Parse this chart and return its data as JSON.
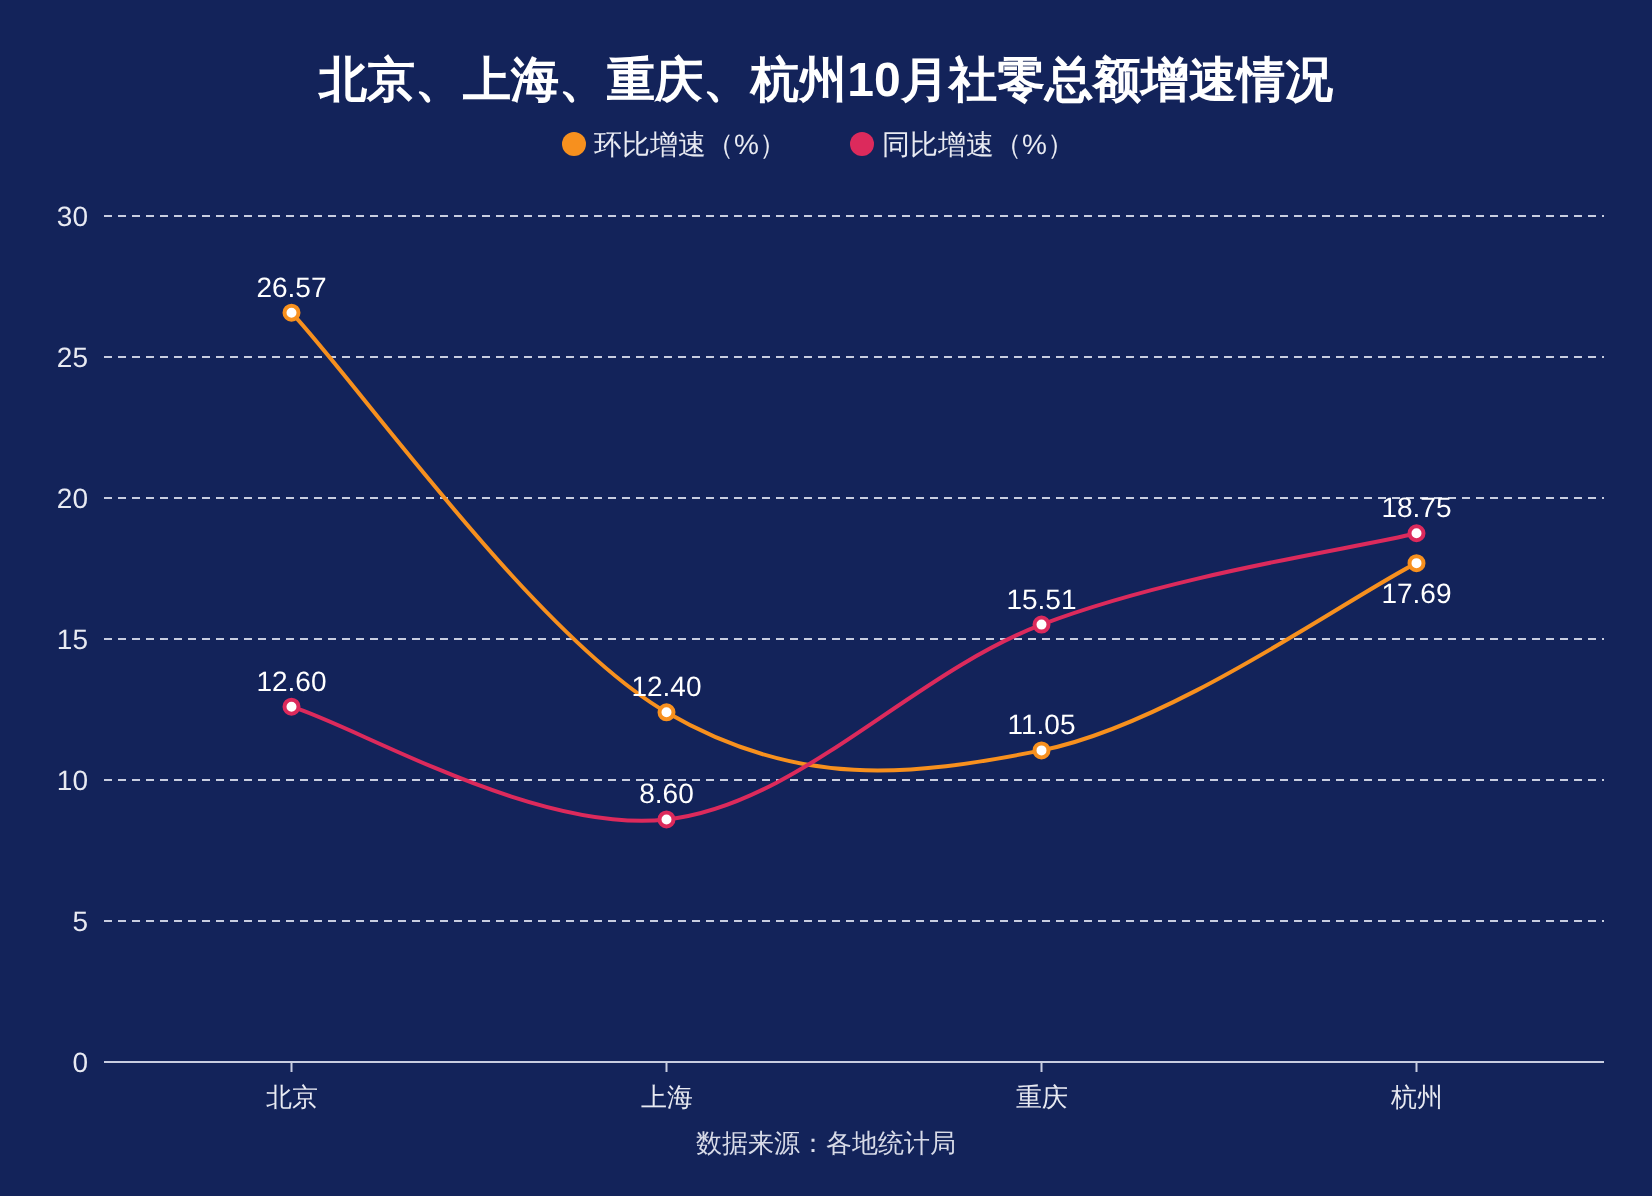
{
  "chart_data": {
    "type": "line",
    "title": "北京、上海、重庆、杭州10月社零总额增速情况",
    "categories": [
      "北京",
      "上海",
      "重庆",
      "杭州"
    ],
    "series": [
      {
        "name": "环比增速（%）",
        "color": "#f7901e",
        "values": [
          26.57,
          12.4,
          11.05,
          17.69
        ],
        "value_labels": [
          "26.57",
          "12.40",
          "11.05",
          "17.69"
        ]
      },
      {
        "name": "同比增速（%）",
        "color": "#dc2a5c",
        "values": [
          12.6,
          8.6,
          15.51,
          18.75
        ],
        "value_labels": [
          "12.60",
          "8.60",
          "15.51",
          "18.75"
        ]
      }
    ],
    "ylim": [
      0,
      30
    ],
    "yticks": [
      0,
      5,
      10,
      15,
      20,
      25,
      30
    ],
    "grid": "y",
    "legend": "top",
    "marker": "circle",
    "line_style": "solid",
    "annotations": [
      "数据来源：各地统计局"
    ]
  }
}
